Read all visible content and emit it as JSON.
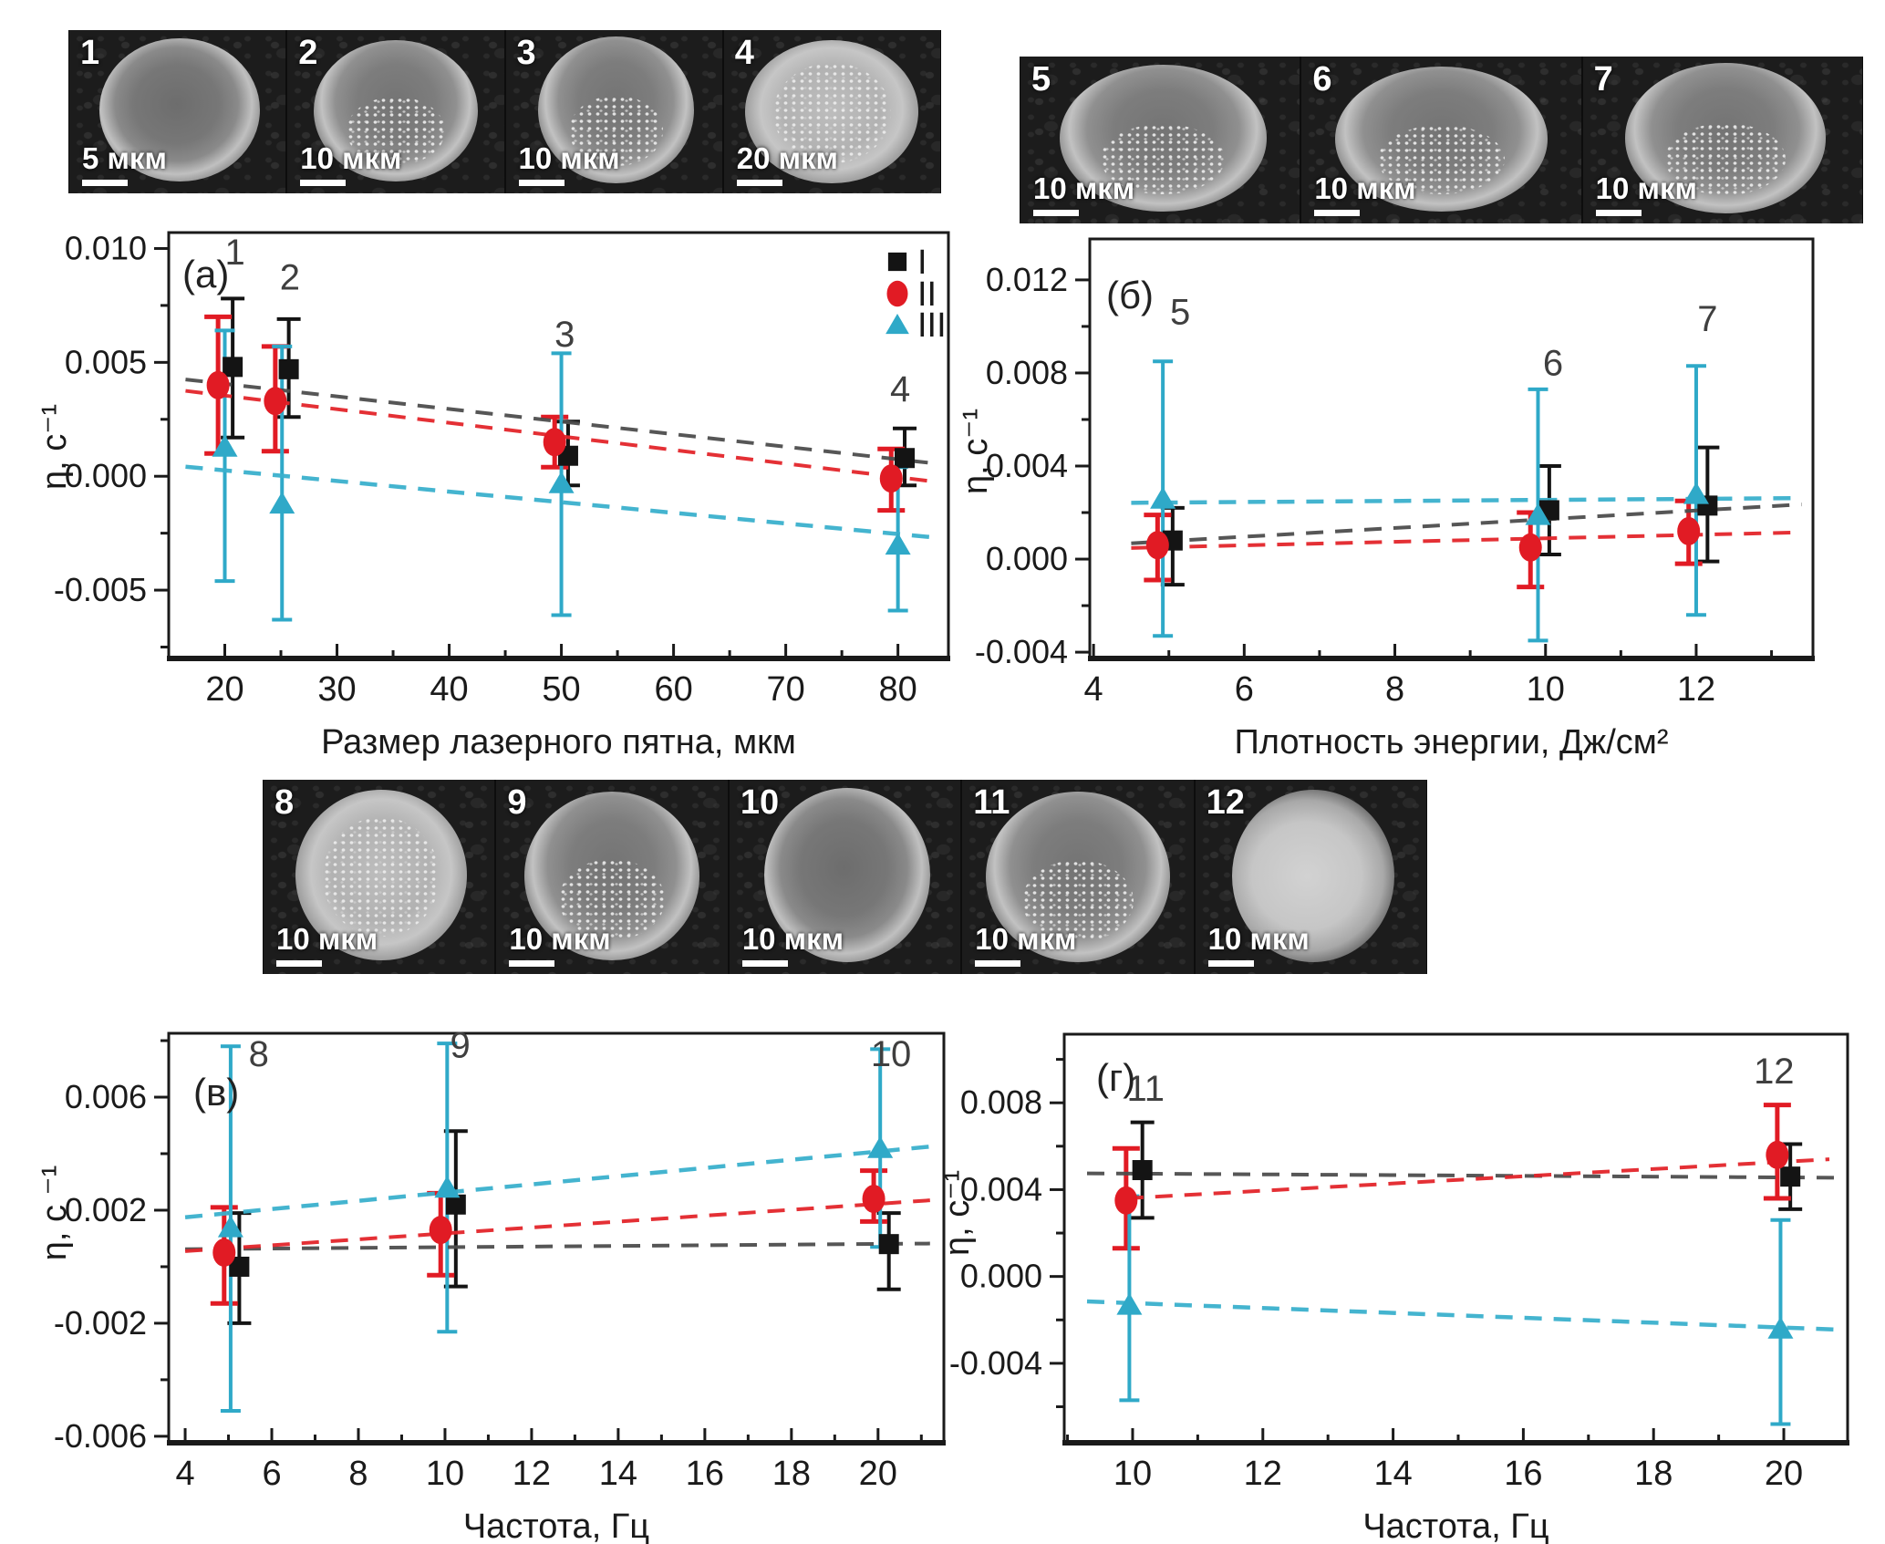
{
  "figure": {
    "strips": {
      "top_left": {
        "images": [
          {
            "label": "1",
            "scalebar": "5 мкм",
            "variant": "smooth"
          },
          {
            "label": "2",
            "scalebar": "10 мкм",
            "variant": "speckled"
          },
          {
            "label": "3",
            "scalebar": "10 мкм",
            "variant": "speckled"
          },
          {
            "label": "4",
            "scalebar": "20 мкм",
            "variant": "bright"
          }
        ]
      },
      "top_right": {
        "images": [
          {
            "label": "5",
            "scalebar": "10 мкм",
            "variant": "speckled"
          },
          {
            "label": "6",
            "scalebar": "10 мкм",
            "variant": "speckled"
          },
          {
            "label": "7",
            "scalebar": "10 мкм",
            "variant": "speckled"
          }
        ]
      },
      "middle": {
        "images": [
          {
            "label": "8",
            "scalebar": "10 мкм",
            "variant": "bright"
          },
          {
            "label": "9",
            "scalebar": "10 мкм",
            "variant": "speckled"
          },
          {
            "label": "10",
            "scalebar": "10 мкм",
            "variant": "smooth"
          },
          {
            "label": "11",
            "scalebar": "10 мкм",
            "variant": "speckled"
          },
          {
            "label": "12",
            "scalebar": "10 мкм",
            "variant": "smooth-bright"
          }
        ]
      }
    },
    "legend": {
      "items": [
        {
          "label": "I",
          "series": "I"
        },
        {
          "label": "II",
          "series": "II"
        },
        {
          "label": "III",
          "series": "III"
        }
      ]
    },
    "colors": {
      "I": "#141414",
      "II": "#e11b24",
      "III": "#2fa9c8",
      "trend_I": "#4d4d4d",
      "trend_II": "#e3252b",
      "trend_III": "#3ab0cd",
      "point_label": "#3f3f3f",
      "axis": "#1a1a1a"
    }
  },
  "chart_data": [
    {
      "id": "a",
      "type": "scatter",
      "panel_label": "(а)",
      "xlabel": "Размер лазерного пятна, мкм",
      "ylabel": "η, с⁻¹",
      "xlim": [
        15.0,
        84.5
      ],
      "ylim": [
        -0.008,
        0.0107
      ],
      "xticks": [
        20,
        30,
        40,
        50,
        60,
        70,
        80
      ],
      "yticks": [
        0.01,
        0.005,
        0.0,
        -0.005
      ],
      "ytick_labels": [
        "0.010",
        "0.005",
        "0.000",
        "-0.005"
      ],
      "minor_x_step": 5,
      "minor_y_step": 0.0025,
      "grid": false,
      "legend": true,
      "series": [
        {
          "name": "I",
          "marker": "square",
          "points": [
            [
              20.7,
              0.0048,
              0.0017,
              0.0078
            ],
            [
              25.7,
              0.0047,
              0.0026,
              0.0069
            ],
            [
              50.6,
              0.0009,
              -0.0004,
              0.0024
            ],
            [
              80.6,
              0.0008,
              -0.0004,
              0.0021
            ]
          ],
          "trend": [
            16.5,
            0.00425,
            83.5,
            0.00055
          ]
        },
        {
          "name": "II",
          "marker": "circle",
          "points": [
            [
              19.4,
              0.004,
              0.001,
              0.007
            ],
            [
              24.5,
              0.0033,
              0.0011,
              0.0057
            ],
            [
              49.4,
              0.0015,
              0.0004,
              0.0026
            ],
            [
              79.4,
              -0.0001,
              -0.0015,
              0.0012
            ]
          ],
          "trend": [
            16.5,
            0.00375,
            83.5,
            -0.00025
          ]
        },
        {
          "name": "III",
          "marker": "triangle",
          "points": [
            [
              20.0,
              0.0013,
              -0.0046,
              0.0064
            ],
            [
              25.1,
              -0.0012,
              -0.0063,
              0.0057
            ],
            [
              50.0,
              -0.0003,
              -0.0061,
              0.0054
            ],
            [
              80.0,
              -0.003,
              -0.0059,
              0.0004
            ]
          ],
          "trend": [
            16.5,
            0.00042,
            83.5,
            -0.0027
          ]
        }
      ],
      "point_labels": [
        {
          "text": "1",
          "x": 20.9,
          "y": 0.0093
        },
        {
          "text": "2",
          "x": 25.8,
          "y": 0.0082
        },
        {
          "text": "3",
          "x": 50.3,
          "y": 0.0057
        },
        {
          "text": "4",
          "x": 80.2,
          "y": 0.0033
        }
      ]
    },
    {
      "id": "b",
      "type": "scatter",
      "panel_label": "(б)",
      "xlabel": "Плотность энергии, Дж/см²",
      "ylabel": "η, с⁻¹",
      "xlim": [
        3.95,
        13.55
      ],
      "ylim": [
        -0.00427,
        0.01376
      ],
      "xticks": [
        4,
        6,
        8,
        10,
        12
      ],
      "yticks": [
        0.012,
        0.008,
        0.004,
        0.0,
        -0.004
      ],
      "ytick_labels": [
        "0.012",
        "0.008",
        "0.004",
        "0.000",
        "-0.004"
      ],
      "minor_x_step": 1,
      "minor_y_step": 0.002,
      "grid": false,
      "legend": false,
      "series": [
        {
          "name": "I",
          "marker": "square",
          "points": [
            [
              5.05,
              0.0008,
              -0.0011,
              0.0022
            ],
            [
              10.05,
              0.0021,
              0.0002,
              0.004
            ],
            [
              12.15,
              0.0023,
              -0.0001,
              0.0048
            ]
          ],
          "trend": [
            4.5,
            0.00068,
            13.4,
            0.00235
          ]
        },
        {
          "name": "II",
          "marker": "circle",
          "points": [
            [
              4.85,
              0.0006,
              -0.0009,
              0.0019
            ],
            [
              9.8,
              0.0005,
              -0.0012,
              0.002
            ],
            [
              11.9,
              0.0012,
              -0.0002,
              0.0025
            ]
          ],
          "trend": [
            4.5,
            0.00048,
            13.4,
            0.00115
          ]
        },
        {
          "name": "III",
          "marker": "triangle",
          "points": [
            [
              4.92,
              0.0026,
              -0.0033,
              0.0085
            ],
            [
              9.9,
              0.0019,
              -0.0035,
              0.0073
            ],
            [
              12.0,
              0.0028,
              -0.0024,
              0.0083
            ]
          ],
          "trend": [
            4.5,
            0.00242,
            13.4,
            0.00262
          ]
        }
      ],
      "point_labels": [
        {
          "text": "5",
          "x": 5.15,
          "y": 0.0101
        },
        {
          "text": "6",
          "x": 10.1,
          "y": 0.0079
        },
        {
          "text": "7",
          "x": 12.15,
          "y": 0.0098
        }
      ]
    },
    {
      "id": "v",
      "type": "scatter",
      "panel_label": "(в)",
      "xlabel": "Частота, Гц",
      "ylabel": "η, с ⁻¹",
      "xlim": [
        3.62,
        21.52
      ],
      "ylim": [
        -0.00623,
        0.00826
      ],
      "xticks": [
        4,
        6,
        8,
        10,
        12,
        14,
        16,
        18,
        20
      ],
      "yticks": [
        0.006,
        0.002,
        -0.002,
        -0.006
      ],
      "ytick_labels": [
        "0.006",
        "0.002",
        "-0.002",
        "-0.006"
      ],
      "minor_x_step": 1,
      "minor_y_step": 0.002,
      "grid": false,
      "legend": false,
      "series": [
        {
          "name": "I",
          "marker": "square",
          "points": [
            [
              5.25,
              0.0,
              -0.002,
              0.0019
            ],
            [
              10.25,
              0.0022,
              -0.0007,
              0.0048
            ],
            [
              20.25,
              0.0008,
              -0.0008,
              0.0019
            ]
          ],
          "trend": [
            4.0,
            0.00062,
            21.2,
            0.00082
          ]
        },
        {
          "name": "II",
          "marker": "circle",
          "points": [
            [
              4.9,
              0.0005,
              -0.0013,
              0.0021
            ],
            [
              9.9,
              0.0013,
              -0.0003,
              0.0026
            ],
            [
              19.9,
              0.0024,
              0.0016,
              0.0034
            ]
          ],
          "trend": [
            4.0,
            0.00055,
            21.2,
            0.00235
          ]
        },
        {
          "name": "III",
          "marker": "triangle",
          "points": [
            [
              5.05,
              0.0014,
              -0.0051,
              0.0078
            ],
            [
              10.05,
              0.0028,
              -0.0023,
              0.0079
            ],
            [
              20.05,
              0.0042,
              0.0007,
              0.0077
            ]
          ],
          "trend": [
            4.0,
            0.00175,
            21.2,
            0.00425
          ]
        }
      ],
      "point_labels": [
        {
          "text": "8",
          "x": 5.7,
          "y": 0.0071
        },
        {
          "text": "9",
          "x": 10.35,
          "y": 0.0074
        },
        {
          "text": "10",
          "x": 20.3,
          "y": 0.0071
        }
      ]
    },
    {
      "id": "g",
      "type": "scatter",
      "panel_label": "(г)",
      "xlabel": "Частота, Гц",
      "ylabel": "η, с⁻¹",
      "xlim": [
        8.95,
        20.98
      ],
      "ylim": [
        -0.00766,
        0.01116
      ],
      "xticks": [
        10,
        12,
        14,
        16,
        18,
        20
      ],
      "yticks": [
        0.008,
        0.004,
        0.0,
        -0.004
      ],
      "ytick_labels": [
        "0.008",
        "0.004",
        "0.000",
        "-0.004"
      ],
      "minor_x_step": 1,
      "minor_y_step": 0.002,
      "grid": false,
      "legend": false,
      "series": [
        {
          "name": "I",
          "marker": "square",
          "points": [
            [
              10.15,
              0.0049,
              0.0027,
              0.0071
            ],
            [
              20.1,
              0.0046,
              0.0031,
              0.0061
            ]
          ],
          "trend": [
            9.3,
            0.00475,
            20.85,
            0.00455
          ]
        },
        {
          "name": "II",
          "marker": "circle",
          "points": [
            [
              9.9,
              0.0035,
              0.0013,
              0.0059
            ],
            [
              19.9,
              0.0056,
              0.0036,
              0.0079
            ]
          ],
          "trend": [
            9.9,
            0.0036,
            20.7,
            0.0054
          ]
        },
        {
          "name": "III",
          "marker": "triangle",
          "points": [
            [
              9.95,
              -0.0013,
              -0.0057,
              0.0037
            ],
            [
              19.95,
              -0.0024,
              -0.0068,
              0.0026
            ]
          ],
          "trend": [
            9.3,
            -0.00115,
            20.85,
            -0.00245
          ]
        }
      ],
      "point_labels": [
        {
          "text": "11",
          "x": 10.2,
          "y": 0.0081
        },
        {
          "text": "12",
          "x": 19.85,
          "y": 0.0089
        }
      ]
    }
  ]
}
